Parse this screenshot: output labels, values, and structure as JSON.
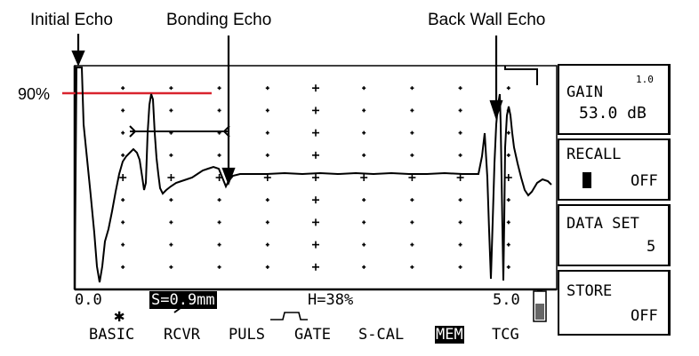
{
  "annotations": {
    "initial_echo": "Initial Echo",
    "bonding_echo": "Bonding Echo",
    "back_wall_echo": "Back Wall Echo",
    "level_90": "90%"
  },
  "panel": {
    "gain_label": "GAIN",
    "gain_step": "1.0",
    "gain_value": "53.0 dB",
    "recall_label": "RECALL",
    "recall_value": "OFF",
    "data_set_label": "DATA SET",
    "data_set_value": "5",
    "store_label": "STORE",
    "store_value": "OFF"
  },
  "status": {
    "range_start": "0.0",
    "range_end": "5.0",
    "sound_path": "S=0.9mm",
    "height": "H=38%"
  },
  "menu": [
    "BASIC",
    "RCVR",
    "PULS",
    "GATE",
    "S-CAL",
    "MEM",
    "TCG"
  ],
  "menu_active": "MEM",
  "colors": {
    "level_line": "#d9232e"
  }
}
